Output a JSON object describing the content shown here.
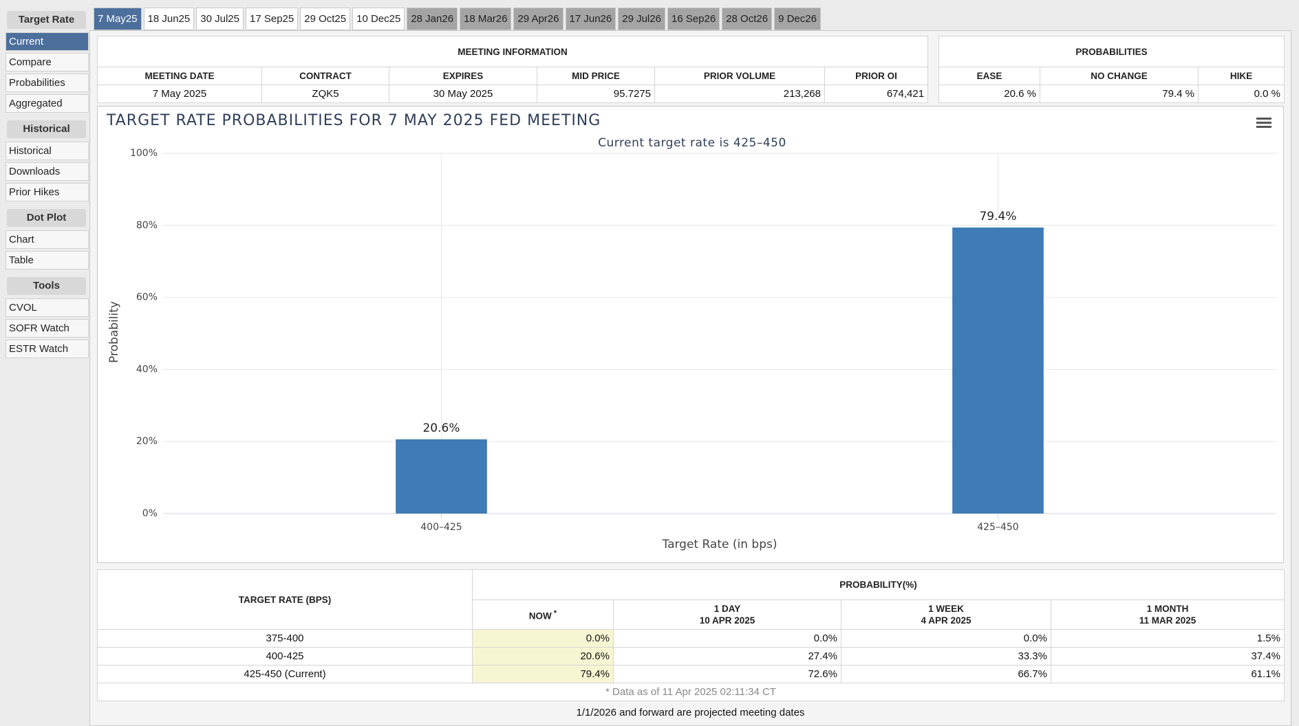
{
  "sidebar": {
    "groups": [
      {
        "title": "Target Rate",
        "items": [
          "Current",
          "Compare",
          "Probabilities",
          "Aggregated"
        ]
      },
      {
        "title": "Historical",
        "items": [
          "Historical",
          "Downloads",
          "Prior Hikes"
        ]
      },
      {
        "title": "Dot Plot",
        "items": [
          "Chart",
          "Table"
        ]
      },
      {
        "title": "Tools",
        "items": [
          "CVOL",
          "SOFR Watch",
          "ESTR Watch"
        ]
      }
    ]
  },
  "tabs": [
    "7 May25",
    "18 Jun25",
    "30 Jul25",
    "17 Sep25",
    "29 Oct25",
    "10 Dec25",
    "28 Jan26",
    "18 Mar26",
    "29 Apr26",
    "17 Jun26",
    "29 Jul26",
    "16 Sep26",
    "28 Oct26",
    "9 Dec26"
  ],
  "meeting_info": {
    "title": "MEETING INFORMATION",
    "headers": [
      "MEETING DATE",
      "CONTRACT",
      "EXPIRES",
      "MID PRICE",
      "PRIOR VOLUME",
      "PRIOR OI"
    ],
    "row": [
      "7 May 2025",
      "ZQK5",
      "30 May 2025",
      "95.7275",
      "213,268",
      "674,421"
    ]
  },
  "probabilities": {
    "title": "PROBABILITIES",
    "headers": [
      "EASE",
      "NO CHANGE",
      "HIKE"
    ],
    "row": [
      "20.6 %",
      "79.4 %",
      "0.0 %"
    ]
  },
  "chart_data": {
    "type": "bar",
    "title": "TARGET RATE PROBABILITIES FOR 7 MAY 2025 FED MEETING",
    "subtitle": "Current target rate is 425–450",
    "x_label": "Target Rate (in bps)",
    "y_label": "Probability",
    "categories": [
      "400–425",
      "425–450"
    ],
    "values": [
      20.6,
      79.4
    ],
    "value_labels": [
      "20.6%",
      "79.4%"
    ],
    "color": "#3f7bb6",
    "ylim": [
      0,
      100
    ],
    "yticks": [
      {
        "value": 0,
        "label": "0%"
      },
      {
        "value": 20,
        "label": "20%"
      },
      {
        "value": 40,
        "label": "40%"
      },
      {
        "value": 60,
        "label": "60%"
      },
      {
        "value": 80,
        "label": "80%"
      },
      {
        "value": 100,
        "label": "100%"
      }
    ],
    "grid": true
  },
  "prob_table": {
    "row_header": "TARGET RATE (BPS)",
    "group_header": "PROBABILITY(%)",
    "columns": [
      {
        "label": "NOW",
        "note": "*"
      },
      {
        "label": "1 DAY",
        "date": "10 APR 2025"
      },
      {
        "label": "1 WEEK",
        "date": "4 APR 2025"
      },
      {
        "label": "1 MONTH",
        "date": "11 MAR 2025"
      }
    ],
    "rows": [
      [
        "375-400",
        "0.0%",
        "0.0%",
        "0.0%",
        "1.5%"
      ],
      [
        "400-425",
        "20.6%",
        "27.4%",
        "33.3%",
        "37.4%"
      ],
      [
        "425-450 (Current)",
        "79.4%",
        "72.6%",
        "66.7%",
        "61.1%"
      ]
    ],
    "data_note": "* Data as of 11 Apr 2025 02:11:34 CT"
  },
  "footer": "1/1/2026 and forward are projected meeting dates"
}
